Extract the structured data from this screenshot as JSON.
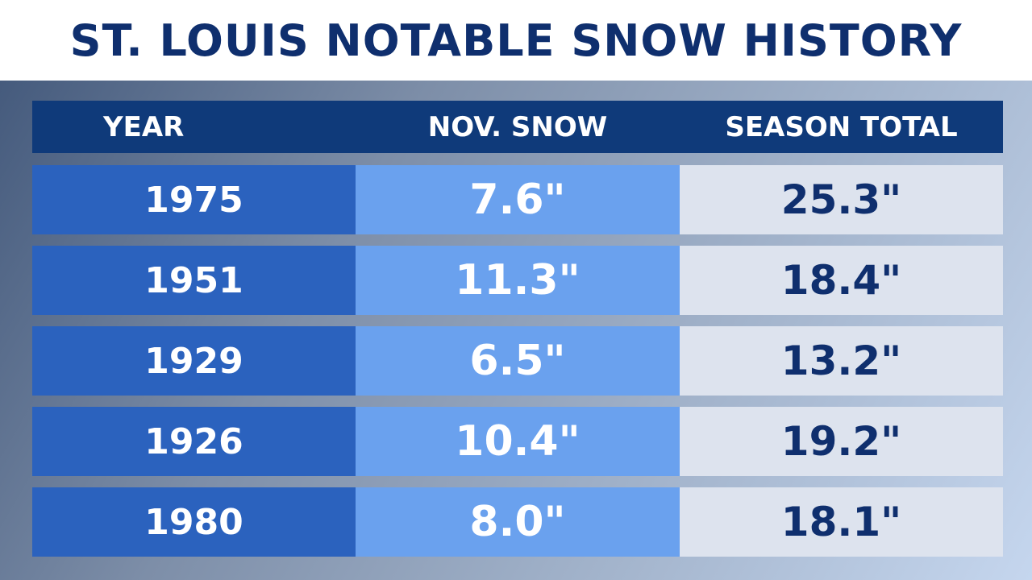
{
  "header": {
    "title": "ST. LOUIS NOTABLE SNOW HISTORY"
  },
  "table": {
    "columns": [
      "YEAR",
      "NOV. SNOW",
      "SEASON TOTAL"
    ],
    "rows": [
      [
        "1975",
        "7.6\"",
        "25.3\""
      ],
      [
        "1951",
        "11.3\"",
        "18.4\""
      ],
      [
        "1929",
        "6.5\"",
        "13.2\""
      ],
      [
        "1926",
        "10.4\"",
        "19.2\""
      ],
      [
        "1980",
        "8.0\"",
        "18.1\""
      ]
    ]
  }
}
